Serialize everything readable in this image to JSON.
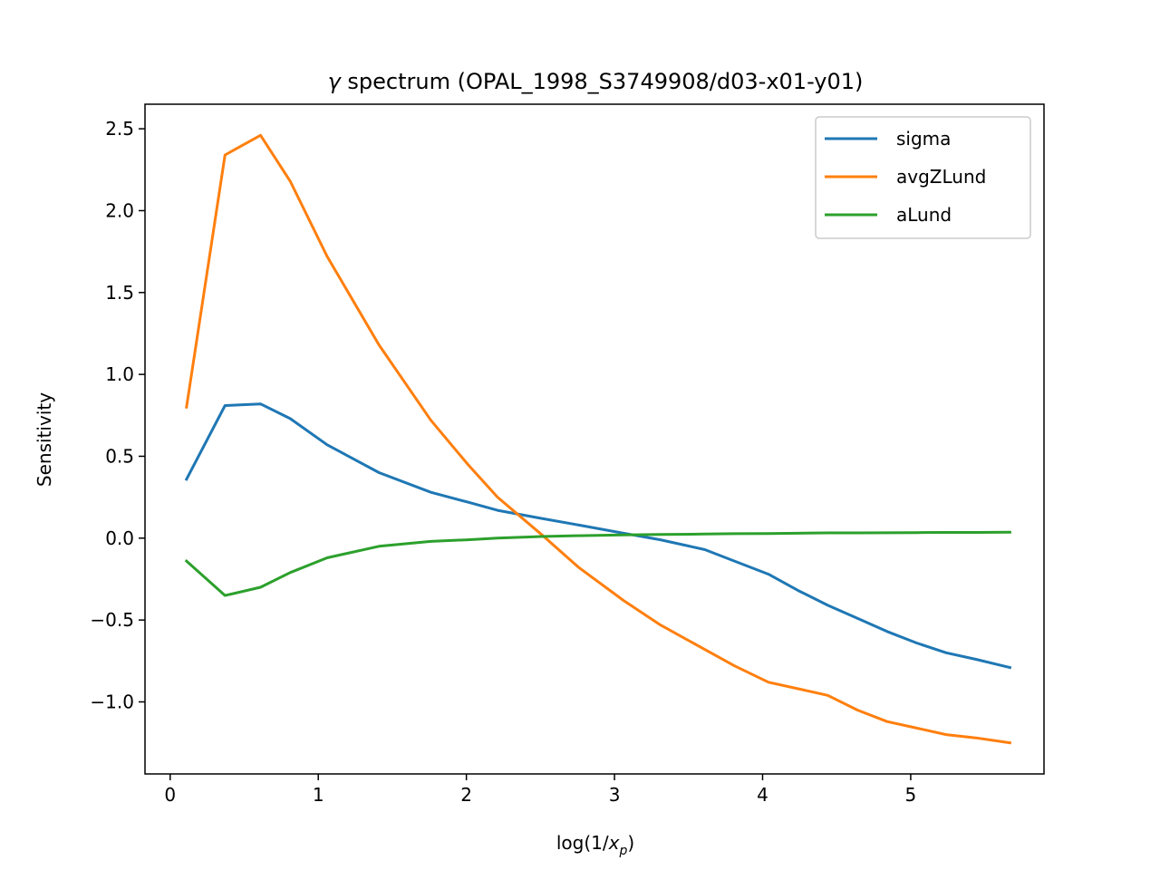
{
  "chart_data": {
    "type": "line",
    "title_symbol": "γ",
    "title_text": " spectrum (OPAL_1998_S3749908/d03-x01-y01)",
    "xlabel_prefix": "log(1/",
    "xlabel_var": "x",
    "xlabel_sub": "p",
    "xlabel_suffix": ")",
    "ylabel": "Sensitivity",
    "xlim": [
      -0.17,
      5.9
    ],
    "ylim": [
      -1.44,
      2.65
    ],
    "xticks": [
      0,
      1,
      2,
      3,
      4,
      5
    ],
    "yticks": [
      -1.0,
      -0.5,
      0.0,
      0.5,
      1.0,
      1.5,
      2.0,
      2.5
    ],
    "ytick_labels": [
      "−1.0",
      "−0.5",
      "0.0",
      "0.5",
      "1.0",
      "1.5",
      "2.0",
      "2.5"
    ],
    "xtick_labels": [
      "0",
      "1",
      "2",
      "3",
      "4",
      "5"
    ],
    "grid": false,
    "legend_position": "top-right",
    "x": [
      0.11,
      0.37,
      0.61,
      0.81,
      1.06,
      1.41,
      1.76,
      2.01,
      2.21,
      2.51,
      2.76,
      3.06,
      3.31,
      3.61,
      3.81,
      4.04,
      4.24,
      4.44,
      4.64,
      4.84,
      5.04,
      5.24,
      5.44,
      5.67
    ],
    "series": [
      {
        "name": "sigma",
        "color": "#1f77b4",
        "values": [
          0.36,
          0.81,
          0.82,
          0.73,
          0.57,
          0.4,
          0.28,
          0.22,
          0.17,
          0.12,
          0.08,
          0.03,
          -0.01,
          -0.07,
          -0.14,
          -0.22,
          -0.32,
          -0.41,
          -0.49,
          -0.57,
          -0.64,
          -0.7,
          -0.74,
          -0.79
        ]
      },
      {
        "name": "avgZLund",
        "color": "#ff7f0e",
        "values": [
          0.8,
          2.34,
          2.46,
          2.18,
          1.72,
          1.18,
          0.72,
          0.45,
          0.25,
          0.02,
          -0.18,
          -0.38,
          -0.53,
          -0.68,
          -0.78,
          -0.88,
          -0.92,
          -0.96,
          -1.05,
          -1.12,
          -1.16,
          -1.2,
          -1.22,
          -1.25
        ]
      },
      {
        "name": "aLund",
        "color": "#2ca02c",
        "values": [
          -0.14,
          -0.35,
          -0.3,
          -0.21,
          -0.12,
          -0.05,
          -0.02,
          -0.01,
          0.0,
          0.01,
          0.015,
          0.02,
          0.022,
          0.025,
          0.027,
          0.028,
          0.03,
          0.032,
          0.032,
          0.033,
          0.034,
          0.035,
          0.035,
          0.036
        ]
      }
    ]
  }
}
